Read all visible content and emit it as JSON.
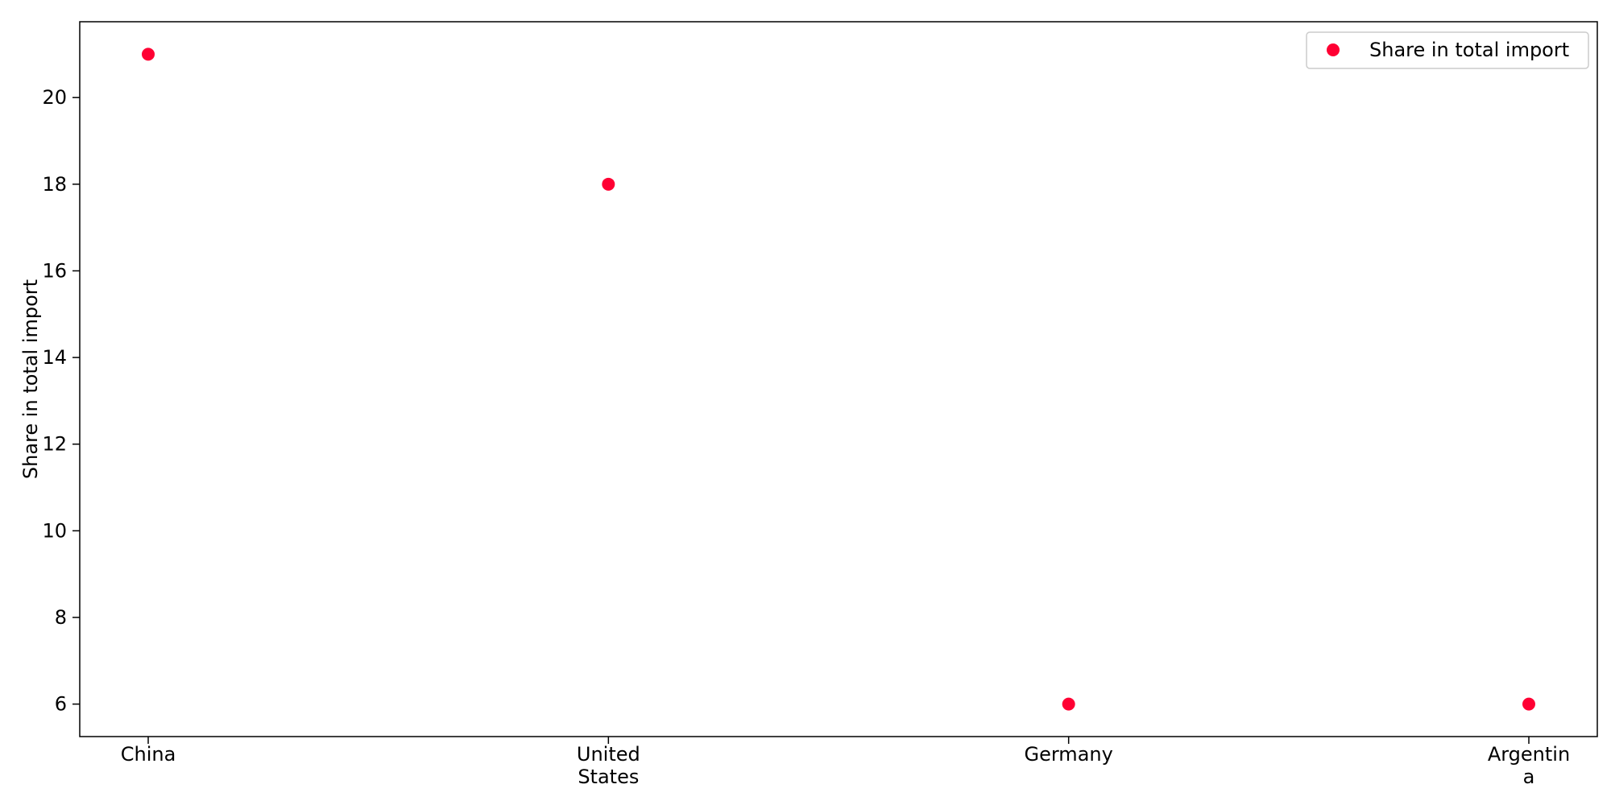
{
  "chart_data": {
    "type": "scatter",
    "categories": [
      "China",
      "United States",
      "Germany",
      "Argentina"
    ],
    "category_labels": [
      [
        "China"
      ],
      [
        "United",
        "States"
      ],
      [
        "Germany"
      ],
      [
        "Argentin",
        "a"
      ]
    ],
    "series": [
      {
        "name": "Share in total import",
        "values": [
          21,
          18,
          6,
          6
        ],
        "color": "#ff0033"
      }
    ],
    "title": "",
    "xlabel": "",
    "ylabel": "Share in total import",
    "ylim": [
      5.25,
      21.75
    ],
    "yticks": [
      6,
      8,
      10,
      12,
      14,
      16,
      18,
      20
    ],
    "grid": false,
    "legend_position": "top-right"
  }
}
